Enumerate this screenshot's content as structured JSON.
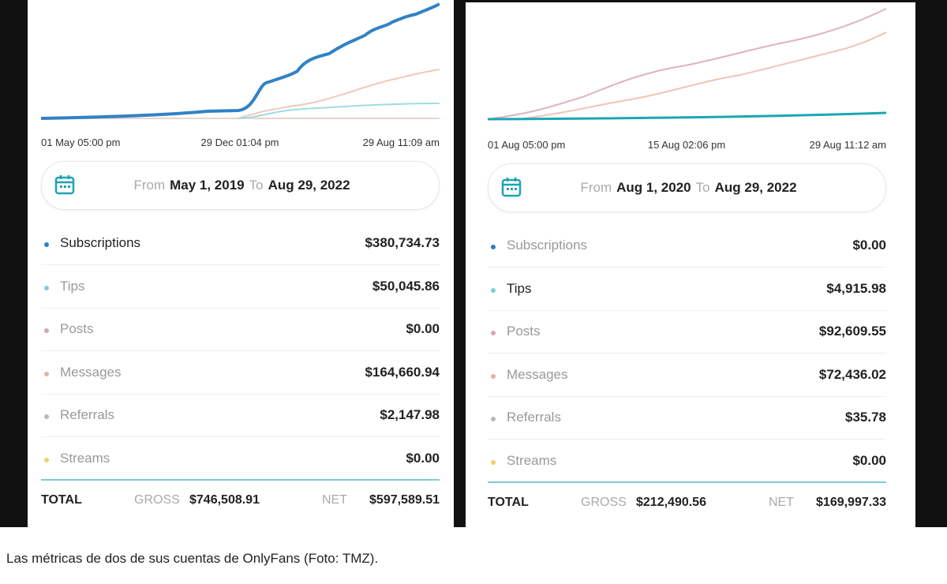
{
  "panels": [
    {
      "x_labels": [
        "01 May 05:00 pm",
        "29 Dec 01:04 pm",
        "29 Aug 11:09 am"
      ],
      "date_range": {
        "from_label": "From",
        "from": "May 1, 2019",
        "to_label": "To",
        "to": "Aug 29, 2022"
      },
      "rows": [
        {
          "label": "Subscriptions",
          "amount": "$380,734.73"
        },
        {
          "label": "Tips",
          "amount": "$50,045.86"
        },
        {
          "label": "Posts",
          "amount": "$0.00"
        },
        {
          "label": "Messages",
          "amount": "$164,660.94"
        },
        {
          "label": "Referrals",
          "amount": "$2,147.98"
        },
        {
          "label": "Streams",
          "amount": "$0.00"
        }
      ],
      "total": {
        "label": "TOTAL",
        "gross_label": "GROSS",
        "gross": "$746,508.91",
        "net_label": "NET",
        "net": "$597,589.51"
      }
    },
    {
      "x_labels": [
        "01 Aug 05:00 pm",
        "15 Aug 02:06 pm",
        "29 Aug 11:12 am"
      ],
      "date_range": {
        "from_label": "From",
        "from": "Aug 1, 2020",
        "to_label": "To",
        "to": "Aug 29, 2022"
      },
      "rows": [
        {
          "label": "Subscriptions",
          "amount": "$0.00"
        },
        {
          "label": "Tips",
          "amount": "$4,915.98"
        },
        {
          "label": "Posts",
          "amount": "$92,609.55"
        },
        {
          "label": "Messages",
          "amount": "$72,436.02"
        },
        {
          "label": "Referrals",
          "amount": "$35.78"
        },
        {
          "label": "Streams",
          "amount": "$0.00"
        }
      ],
      "total": {
        "label": "TOTAL",
        "gross_label": "GROSS",
        "gross": "$212,490.56",
        "net_label": "NET",
        "net": "$169,997.33"
      }
    }
  ],
  "caption": "Las métricas de dos de sus cuentas de OnlyFans (Foto: TMZ)."
}
